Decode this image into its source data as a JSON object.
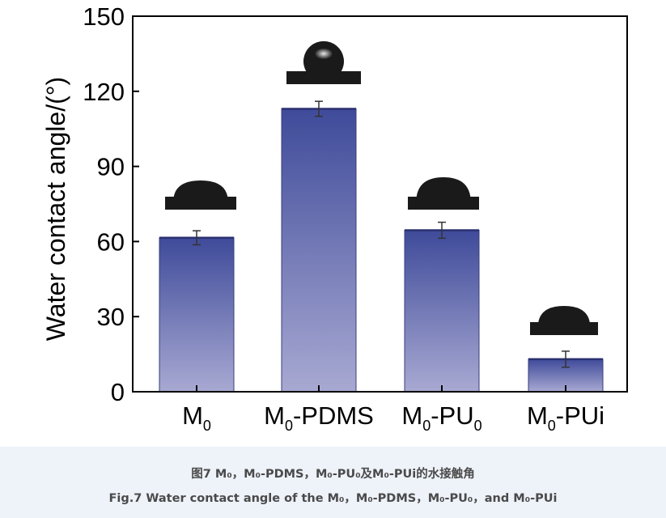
{
  "chart_data": {
    "type": "bar",
    "categories": [
      {
        "main": "M",
        "sub": "0",
        "suffix": ""
      },
      {
        "main": "M",
        "sub": "0",
        "suffix": "-PDMS"
      },
      {
        "main": "M",
        "sub": "0",
        "suffix": "-PU",
        "sub2": "0"
      },
      {
        "main": "M",
        "sub": "0",
        "suffix": "-PUi"
      }
    ],
    "values": [
      61.5,
      113,
      64.5,
      13
    ],
    "errors": [
      2.8,
      3.0,
      3.2,
      3.2
    ],
    "ylabel": "Water contact angle/(°)",
    "xlabel": "",
    "ylim": [
      0,
      150
    ],
    "yticks": [
      0,
      30,
      60,
      90,
      120,
      150
    ],
    "grid": false,
    "bar_color_top": "#3f4b9a",
    "bar_color_bottom": "#a8a9d2",
    "droplet_color": "#1a1a1a"
  },
  "caption": {
    "zh": "图7 M₀，M₀-PDMS，M₀-PU₀及M₀-PUi的水接触角",
    "en": "Fig.7 Water contact angle of the M₀，M₀-PDMS，M₀-PU₀，and M₀-PUi"
  }
}
